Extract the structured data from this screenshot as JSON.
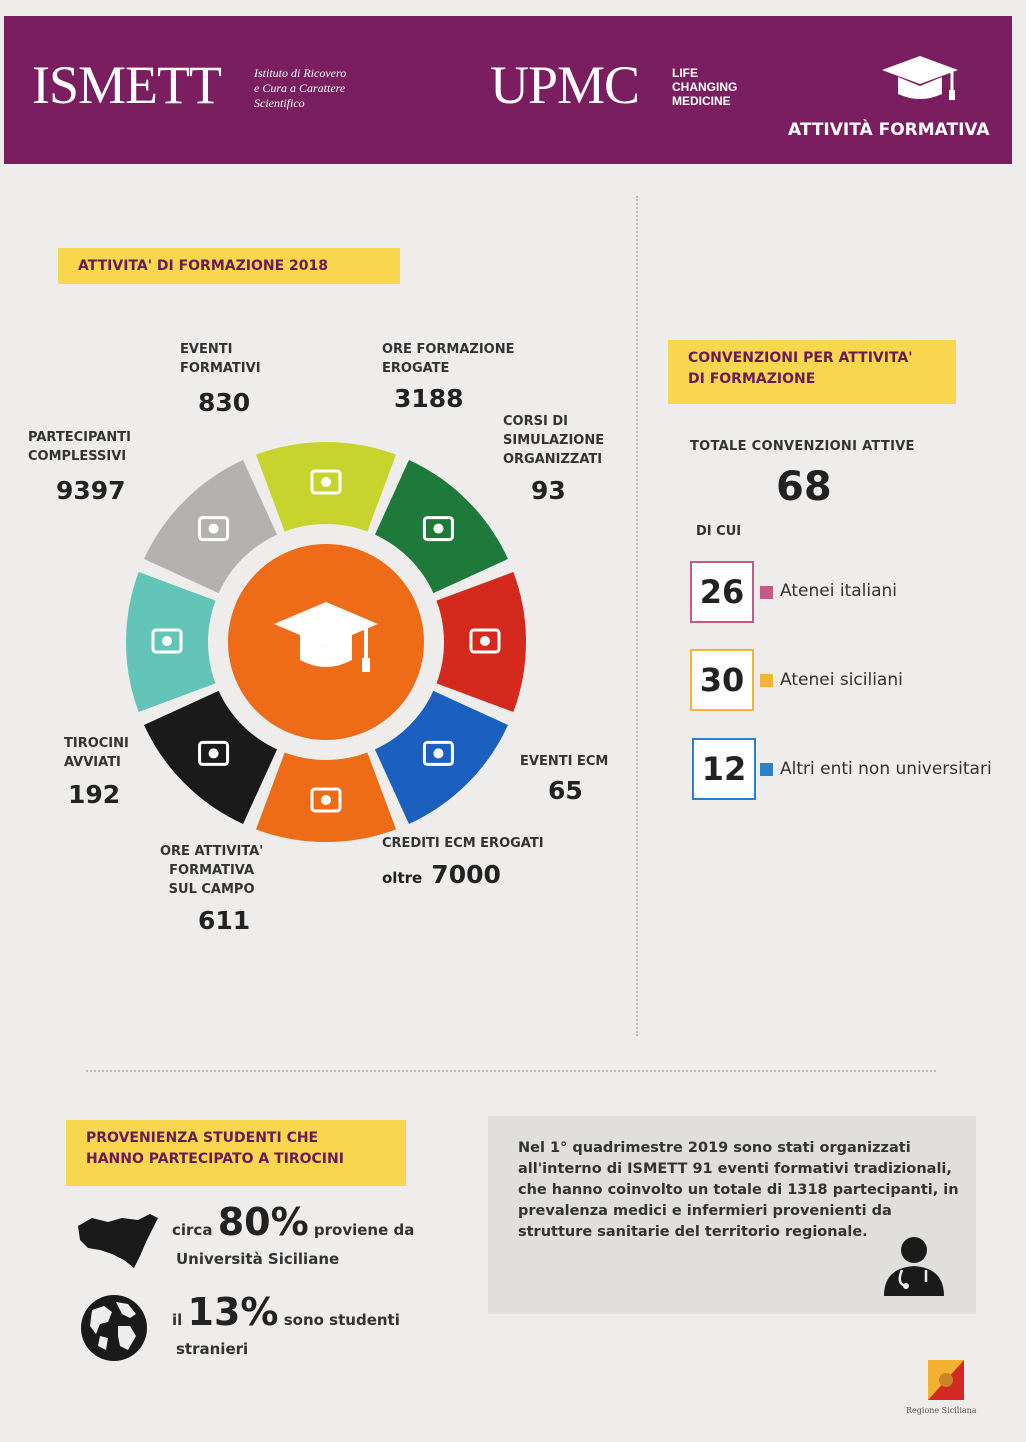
{
  "header": {
    "ismett": "ISMETT",
    "ismett_sub": "Istituto di Ricovero\ne Cura a Carattere\nScientifico",
    "upmc": "UPMC",
    "upmc_tag": "LIFE\nCHANGING\nMEDICINE",
    "title": "ATTIVITÀ FORMATIVA",
    "bg_color": "#7b1e5f"
  },
  "formazione": {
    "heading": "ATTIVITA' DI FORMAZIONE 2018",
    "items": [
      {
        "label": "EVENTI\nFORMATIVI",
        "value": "830",
        "color": "#c7d42d",
        "icon": "book-icon"
      },
      {
        "label": "ORE FORMAZIONE\nEROGATE",
        "value": "3188",
        "color": "#1e7a3a",
        "icon": "clock-icon"
      },
      {
        "label": "CORSI DI\nSIMULAZIONE\nORGANIZZATI",
        "value": "93",
        "color": "#d42a1e",
        "icon": "reader-icon"
      },
      {
        "label": "EVENTI ECM",
        "value": "65",
        "color": "#1b5fbf",
        "icon": "teacher-screen-icon"
      },
      {
        "label": "CREDITI ECM EROGATI",
        "value_prefix": "oltre",
        "value": "7000",
        "color": "#ee6b17",
        "icon": "tablet-icon"
      },
      {
        "label": "ORE ATTIVITA'\nFORMATIVA\nSUL CAMPO",
        "value": "611",
        "color": "#1a1a1a",
        "icon": "hospital-icon"
      },
      {
        "label": "TIROCINI\nAVVIATI",
        "value": "192",
        "color": "#63c4b8",
        "icon": "classroom-icon"
      },
      {
        "label": "PARTECIPANTI\nCOMPLESSIVI",
        "value": "9397",
        "color": "#b3b2b0",
        "icon": "people-icon"
      }
    ],
    "center_color": "#ee6b17",
    "center_icon": "graduation-cap-icon"
  },
  "convenzioni": {
    "heading": "CONVENZIONI PER ATTIVITA'\nDI FORMAZIONE",
    "total_label": "TOTALE CONVENZIONI ATTIVE",
    "total": "68",
    "di_cui": "DI CUI",
    "items": [
      {
        "value": "26",
        "label": "Atenei italiani",
        "color": "#c45b87"
      },
      {
        "value": "30",
        "label": "Atenei siciliani",
        "color": "#f2b536"
      },
      {
        "value": "12",
        "label": "Altri enti non universitari",
        "color": "#2b80c8"
      }
    ]
  },
  "provenienza": {
    "heading": "PROVENIENZA STUDENTI CHE\nHANNO PARTECIPATO A TIROCINI",
    "stat1": {
      "prefix": "circa",
      "pct": "80%",
      "suffix": "proviene da",
      "line2": "Università Siciliane",
      "icon": "sicily-icon"
    },
    "stat2": {
      "prefix": "il",
      "pct": "13%",
      "suffix": "sono studenti",
      "line2": "stranieri",
      "icon": "globe-icon"
    }
  },
  "info": {
    "text": "Nel 1° quadrimestre 2019 sono stati organizzati all'interno di ISMETT 91 eventi formativi tradizionali, che hanno coinvolto un totale di 1318 partecipanti, in prevalenza medici e infermieri provenienti da strutture sanitarie del territorio regionale.",
    "icon": "doctor-icon"
  },
  "footer": {
    "region": "Regione Siciliana"
  }
}
